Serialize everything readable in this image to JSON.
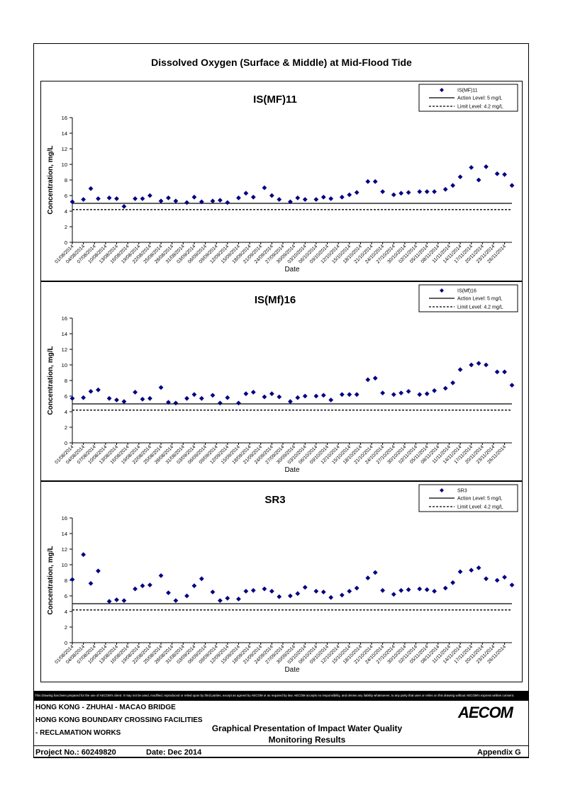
{
  "title": "Dissolved Oxygen (Surface & Middle) at Mid-Flood Tide",
  "disclaimer": "This Drawing has been prepared for the use of AECOM's client. It may not be used, modified, reproduced or relied upon by third parties, except as agreed by AECOM or as required by law. AECOM accepts no responsibility, and denies any liability whatsoever, to any party that uses or relies on this drawing without AECOM's express written consent.",
  "footer": {
    "line1": "HONG KONG - ZHUHAI - MACAO BRIDGE",
    "line2": "HONG KONG BOUNDARY CROSSING FACILITIES",
    "line3": "- RECLAMATION WORKS",
    "center1": "Graphical Presentation of Impact Water Quality",
    "center2": "Monitoring Results",
    "project": "Project No.: 60249820",
    "date": "Date: Dec 2014",
    "appendix": "Appendix G",
    "logo": "AECOM"
  },
  "chart_data": [
    {
      "type": "scatter",
      "title": "IS(MF)11",
      "xlabel": "Date",
      "ylabel": "Concentration, mg/L",
      "ylim": [
        0,
        16
      ],
      "yticks": [
        0,
        2,
        4,
        6,
        8,
        10,
        12,
        14,
        16
      ],
      "xticks": [
        "01/08/2014",
        "04/08/2014",
        "07/08/2014",
        "10/08/2014",
        "13/08/2014",
        "16/08/2014",
        "19/08/2014",
        "22/08/2014",
        "25/08/2014",
        "28/08/2014",
        "31/08/2014",
        "03/09/2014",
        "06/09/2014",
        "09/09/2014",
        "12/09/2014",
        "15/09/2014",
        "18/09/2014",
        "21/09/2014",
        "24/09/2014",
        "27/09/2014",
        "30/09/2014",
        "03/10/2014",
        "06/10/2014",
        "09/10/2014",
        "12/10/2014",
        "15/10/2014",
        "18/10/2014",
        "21/10/2014",
        "24/10/2014",
        "27/10/2014",
        "30/10/2014",
        "02/11/2014",
        "05/11/2014",
        "08/11/2014",
        "11/11/2014",
        "14/11/2014",
        "17/11/2014",
        "20/11/2014",
        "23/11/2014",
        "26/11/2014"
      ],
      "legend_position": "top-right",
      "series": [
        {
          "name": "IS(MF)11",
          "marker": "diamond",
          "color": "#000080",
          "x": [
            "01/08/2014",
            "04/08/2014",
            "06/08/2014",
            "08/08/2014",
            "11/08/2014",
            "13/08/2014",
            "15/08/2014",
            "18/08/2014",
            "20/08/2014",
            "22/08/2014",
            "25/08/2014",
            "27/08/2014",
            "29/08/2014",
            "01/09/2014",
            "03/09/2014",
            "05/09/2014",
            "08/09/2014",
            "10/09/2014",
            "12/09/2014",
            "15/09/2014",
            "17/09/2014",
            "19/09/2014",
            "22/09/2014",
            "24/09/2014",
            "26/09/2014",
            "29/09/2014",
            "01/10/2014",
            "03/10/2014",
            "06/10/2014",
            "08/10/2014",
            "10/10/2014",
            "13/10/2014",
            "15/10/2014",
            "17/10/2014",
            "20/10/2014",
            "22/10/2014",
            "24/10/2014",
            "27/10/2014",
            "29/10/2014",
            "31/10/2014",
            "03/11/2014",
            "05/11/2014",
            "07/11/2014",
            "10/11/2014",
            "12/11/2014",
            "14/11/2014",
            "17/11/2014",
            "19/11/2014",
            "21/11/2014",
            "24/11/2014",
            "26/11/2014",
            "28/11/2014"
          ],
          "values": [
            5.2,
            5.5,
            6.9,
            5.6,
            5.7,
            5.6,
            4.6,
            5.6,
            5.6,
            6.0,
            5.3,
            5.7,
            5.3,
            5.1,
            5.8,
            5.2,
            5.3,
            5.4,
            5.1,
            5.7,
            6.3,
            5.8,
            7.0,
            6.0,
            5.5,
            5.2,
            5.7,
            5.5,
            5.5,
            5.8,
            5.6,
            5.8,
            6.1,
            6.4,
            7.8,
            7.8,
            6.5,
            6.1,
            6.3,
            6.4,
            6.5,
            6.5,
            6.5,
            6.8,
            7.3,
            8.4,
            9.6,
            8.0,
            9.7,
            8.8,
            8.7,
            7.3
          ]
        },
        {
          "name": "Action Level: 5 mg/L",
          "type": "hline",
          "value": 5,
          "style": "solid"
        },
        {
          "name": "Limit Level: 4.2 mg/L",
          "type": "hline",
          "value": 4.2,
          "style": "dashed"
        }
      ]
    },
    {
      "type": "scatter",
      "title": "IS(Mf)16",
      "xlabel": "Date",
      "ylabel": "Concentration, mg/L",
      "ylim": [
        0,
        16
      ],
      "yticks": [
        0,
        2,
        4,
        6,
        8,
        10,
        12,
        14,
        16
      ],
      "xticks": [
        "01/08/2014",
        "04/08/2014",
        "07/08/2014",
        "10/08/2014",
        "13/08/2014",
        "16/08/2014",
        "19/08/2014",
        "22/08/2014",
        "25/08/2014",
        "28/08/2014",
        "31/08/2014",
        "03/09/2014",
        "06/09/2014",
        "09/09/2014",
        "12/09/2014",
        "15/09/2014",
        "18/09/2014",
        "21/09/2014",
        "24/09/2014",
        "27/09/2014",
        "30/09/2014",
        "03/10/2014",
        "06/10/2014",
        "09/10/2014",
        "12/10/2014",
        "15/10/2014",
        "18/10/2014",
        "21/10/2014",
        "24/10/2014",
        "27/10/2014",
        "30/10/2014",
        "02/11/2014",
        "05/11/2014",
        "08/11/2014",
        "11/11/2014",
        "14/11/2014",
        "17/11/2014",
        "20/11/2014",
        "23/11/2014",
        "26/11/2014"
      ],
      "legend_position": "top-right",
      "series": [
        {
          "name": "IS(Mf)16",
          "marker": "diamond",
          "color": "#000080",
          "x": [
            "01/08/2014",
            "04/08/2014",
            "06/08/2014",
            "08/08/2014",
            "11/08/2014",
            "13/08/2014",
            "15/08/2014",
            "18/08/2014",
            "20/08/2014",
            "22/08/2014",
            "25/08/2014",
            "27/08/2014",
            "29/08/2014",
            "01/09/2014",
            "03/09/2014",
            "05/09/2014",
            "08/09/2014",
            "10/09/2014",
            "12/09/2014",
            "15/09/2014",
            "17/09/2014",
            "19/09/2014",
            "22/09/2014",
            "24/09/2014",
            "26/09/2014",
            "29/09/2014",
            "01/10/2014",
            "03/10/2014",
            "06/10/2014",
            "08/10/2014",
            "10/10/2014",
            "13/10/2014",
            "15/10/2014",
            "17/10/2014",
            "20/10/2014",
            "22/10/2014",
            "24/10/2014",
            "27/10/2014",
            "29/10/2014",
            "31/10/2014",
            "03/11/2014",
            "05/11/2014",
            "07/11/2014",
            "10/11/2014",
            "12/11/2014",
            "14/11/2014",
            "17/11/2014",
            "19/11/2014",
            "21/11/2014",
            "24/11/2014",
            "26/11/2014",
            "28/11/2014"
          ],
          "values": [
            5.7,
            5.8,
            6.6,
            6.8,
            5.7,
            5.5,
            5.3,
            6.5,
            5.6,
            5.7,
            7.1,
            5.2,
            5.1,
            5.7,
            6.2,
            5.7,
            6.1,
            5.1,
            5.8,
            5.1,
            6.3,
            6.5,
            5.9,
            6.3,
            5.9,
            5.3,
            5.8,
            6.0,
            6.0,
            6.1,
            5.5,
            6.2,
            6.2,
            6.2,
            8.1,
            8.3,
            6.4,
            6.2,
            6.4,
            6.6,
            6.2,
            6.3,
            6.7,
            7.0,
            7.7,
            9.4,
            10.0,
            10.2,
            10.0,
            9.1,
            9.1,
            7.4
          ]
        },
        {
          "name": "Action Level: 5 mg/L",
          "type": "hline",
          "value": 5,
          "style": "solid"
        },
        {
          "name": "Limit Level: 4.2 mg/L",
          "type": "hline",
          "value": 4.2,
          "style": "dashed"
        }
      ]
    },
    {
      "type": "scatter",
      "title": "SR3",
      "xlabel": "Date",
      "ylabel": "Concentration, mg/L",
      "ylim": [
        0,
        16
      ],
      "yticks": [
        0,
        2,
        4,
        6,
        8,
        10,
        12,
        14,
        16
      ],
      "xticks": [
        "01/08/2014",
        "04/08/2014",
        "07/08/2014",
        "10/08/2014",
        "13/08/2014",
        "16/08/2014",
        "19/08/2014",
        "22/08/2014",
        "25/08/2014",
        "28/08/2014",
        "31/08/2014",
        "03/09/2014",
        "06/09/2014",
        "09/09/2014",
        "12/09/2014",
        "15/09/2014",
        "18/09/2014",
        "21/09/2014",
        "24/09/2014",
        "27/09/2014",
        "30/09/2014",
        "03/10/2014",
        "06/10/2014",
        "09/10/2014",
        "12/10/2014",
        "15/10/2014",
        "18/10/2014",
        "21/10/2014",
        "24/10/2014",
        "27/10/2014",
        "30/10/2014",
        "02/11/2014",
        "05/11/2014",
        "08/11/2014",
        "11/11/2014",
        "14/11/2014",
        "17/11/2014",
        "20/11/2014",
        "23/11/2014",
        "26/11/2014"
      ],
      "legend_position": "top-right",
      "series": [
        {
          "name": "SR3",
          "marker": "diamond",
          "color": "#000080",
          "x": [
            "01/08/2014",
            "04/08/2014",
            "06/08/2014",
            "08/08/2014",
            "11/08/2014",
            "13/08/2014",
            "15/08/2014",
            "18/08/2014",
            "20/08/2014",
            "22/08/2014",
            "25/08/2014",
            "27/08/2014",
            "29/08/2014",
            "01/09/2014",
            "03/09/2014",
            "05/09/2014",
            "08/09/2014",
            "10/09/2014",
            "12/09/2014",
            "15/09/2014",
            "17/09/2014",
            "19/09/2014",
            "22/09/2014",
            "24/09/2014",
            "26/09/2014",
            "29/09/2014",
            "01/10/2014",
            "03/10/2014",
            "06/10/2014",
            "08/10/2014",
            "10/10/2014",
            "13/10/2014",
            "15/10/2014",
            "17/10/2014",
            "20/10/2014",
            "22/10/2014",
            "24/10/2014",
            "27/10/2014",
            "29/10/2014",
            "31/10/2014",
            "03/11/2014",
            "05/11/2014",
            "07/11/2014",
            "10/11/2014",
            "12/11/2014",
            "14/11/2014",
            "17/11/2014",
            "19/11/2014",
            "21/11/2014",
            "24/11/2014",
            "26/11/2014",
            "28/11/2014"
          ],
          "values": [
            8.1,
            11.3,
            7.6,
            9.2,
            5.3,
            5.5,
            5.4,
            6.9,
            7.3,
            7.4,
            8.6,
            6.4,
            5.4,
            6.0,
            7.3,
            8.2,
            6.5,
            5.4,
            5.7,
            5.6,
            6.6,
            6.7,
            6.9,
            6.6,
            5.9,
            6.0,
            6.3,
            7.1,
            6.6,
            6.5,
            5.8,
            6.1,
            6.6,
            7.0,
            8.3,
            9.0,
            6.7,
            6.2,
            6.7,
            6.8,
            6.9,
            6.8,
            6.6,
            7.0,
            7.7,
            9.1,
            9.3,
            9.6,
            8.2,
            8.0,
            8.4,
            7.4
          ]
        },
        {
          "name": "Action Level: 5 mg/L",
          "type": "hline",
          "value": 5,
          "style": "solid"
        },
        {
          "name": "Limit Level: 4.2 mg/L",
          "type": "hline",
          "value": 4.2,
          "style": "dashed"
        }
      ]
    }
  ]
}
